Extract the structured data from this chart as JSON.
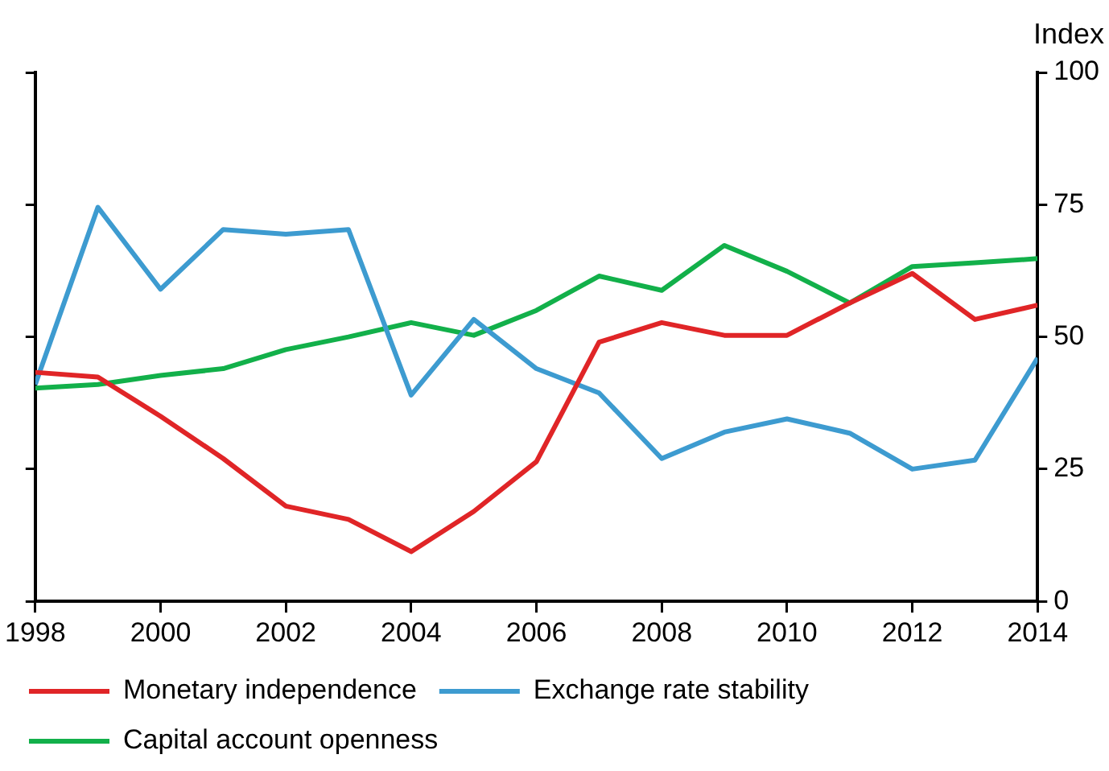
{
  "chart_data": {
    "type": "line",
    "ylabel": "Index",
    "x": [
      1998,
      1999,
      2000,
      2001,
      2002,
      2003,
      2004,
      2005,
      2006,
      2007,
      2008,
      2009,
      2010,
      2011,
      2012,
      2013,
      2014
    ],
    "xlim": [
      1998,
      2014
    ],
    "xticks": [
      1998,
      2000,
      2002,
      2004,
      2006,
      2008,
      2010,
      2012,
      2014
    ],
    "ylim": [
      0,
      100
    ],
    "yticks": [
      0,
      25,
      50,
      75,
      100
    ],
    "grid": false,
    "legend": "bottom",
    "marker": "none",
    "line_style": "solid",
    "series": [
      {
        "name": "Monetary independence",
        "color": "#e02527",
        "values": [
          43.3,
          42.4,
          35,
          27,
          18,
          15.5,
          9.4,
          17,
          26.4,
          49,
          52.7,
          50.3,
          50.3,
          56.4,
          62,
          53.3,
          56
        ]
      },
      {
        "name": "Exchange rate stability",
        "color": "#3d9bd0",
        "values": [
          41,
          74.5,
          59,
          70.3,
          69.4,
          70.3,
          39,
          53.3,
          44,
          39.4,
          27,
          32,
          34.5,
          31.8,
          25,
          26.7,
          46
        ]
      },
      {
        "name": "Capital account openness",
        "color": "#12b04a",
        "values": [
          40.3,
          41,
          42.7,
          44,
          47.6,
          50,
          52.7,
          50.3,
          55,
          61.5,
          58.8,
          67.3,
          62.4,
          56.4,
          63.3,
          64,
          64.8
        ]
      }
    ]
  }
}
